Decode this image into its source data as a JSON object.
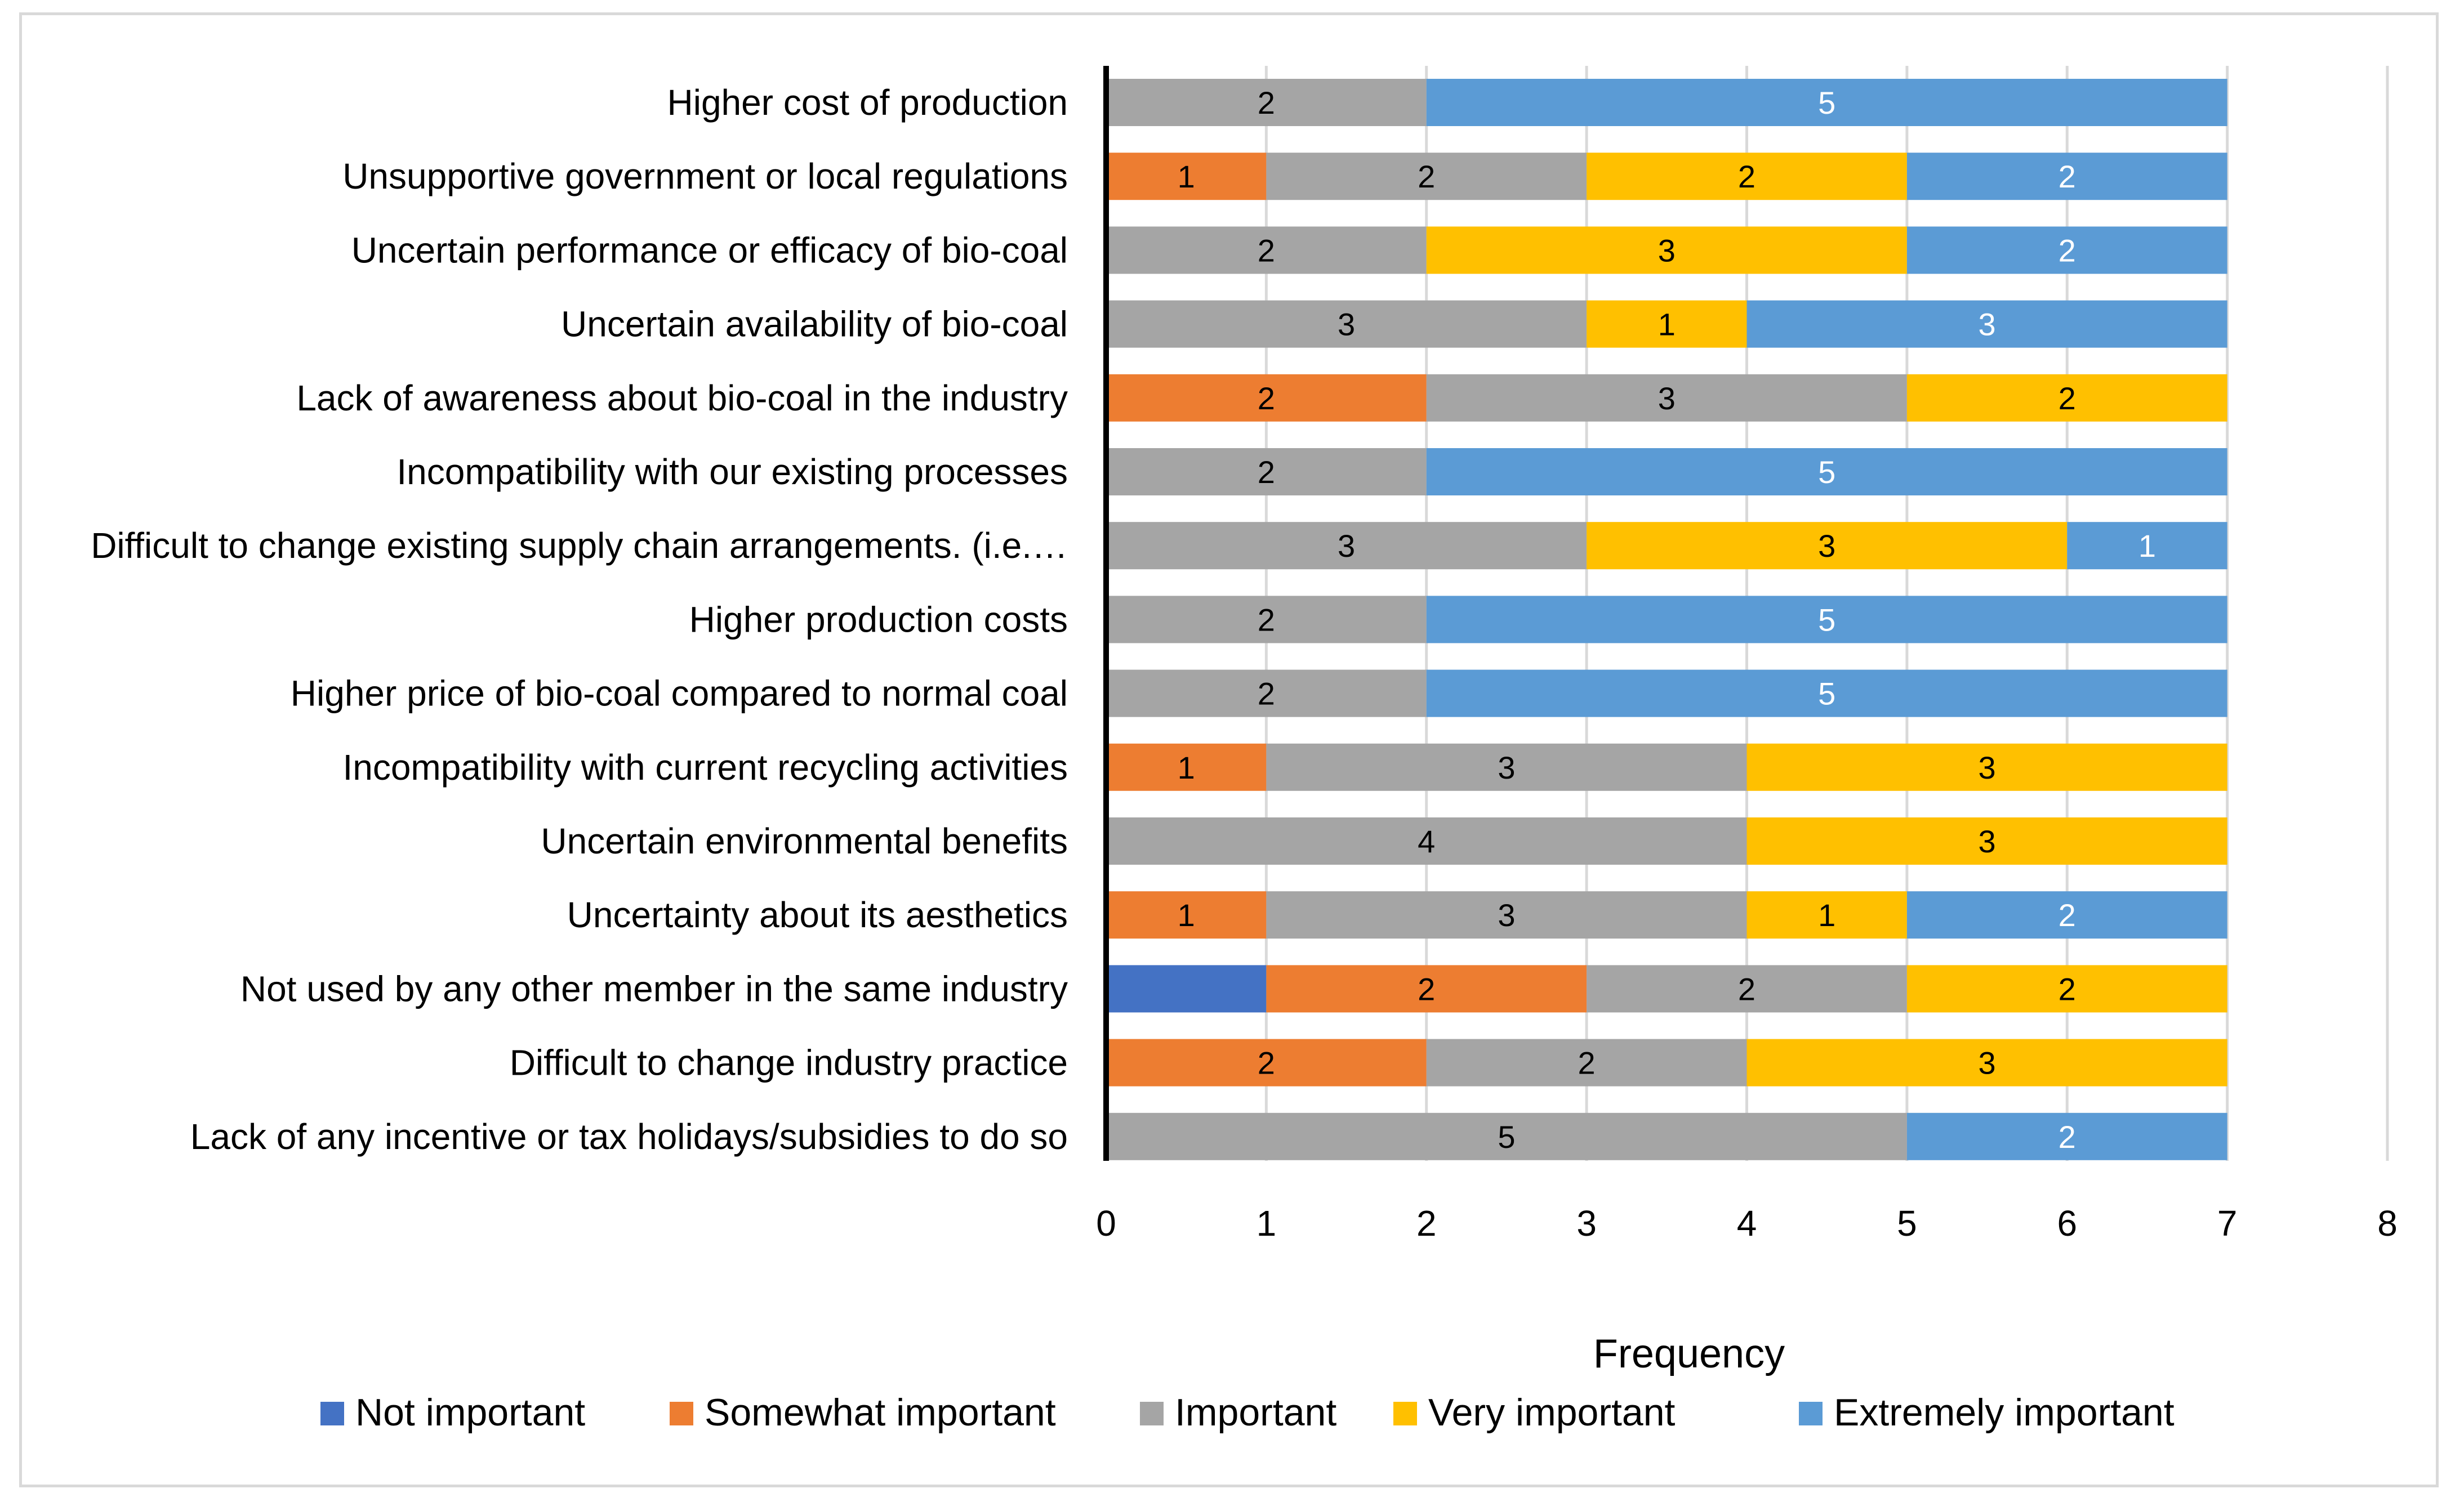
{
  "chart_data": {
    "type": "bar",
    "orientation": "horizontal",
    "stacked": true,
    "title": "",
    "xlabel": "Frequency",
    "ylabel": "",
    "xlim": [
      0,
      8
    ],
    "xticks": [
      0,
      1,
      2,
      3,
      4,
      5,
      6,
      7,
      8
    ],
    "grid": "vertical",
    "legend_position": "bottom",
    "categories": [
      "Higher cost of production",
      "Unsupportive government or local regulations",
      "Uncertain performance or efficacy of bio-coal",
      "Uncertain availability of bio-coal",
      "Lack of awareness about bio-coal in the industry",
      "Incompatibility with our existing processes",
      "Difficult to change existing supply chain arrangements. (i.e.…",
      "Higher production costs",
      "Higher price of bio-coal compared to normal coal",
      "Incompatibility with current recycling activities",
      "Uncertain environmental benefits",
      "Uncertainty about its aesthetics",
      "Not used by any other member in the same industry",
      "Difficult to change industry practice",
      "Lack of any incentive or tax holidays/subsidies to do so"
    ],
    "series": [
      {
        "name": "Not important",
        "color": "#4472c4",
        "label_color": "#ffffff",
        "values": [
          0,
          0,
          0,
          0,
          0,
          0,
          0,
          0,
          0,
          0,
          0,
          0,
          1,
          0,
          0
        ]
      },
      {
        "name": "Somewhat important",
        "color": "#ed7d31",
        "label_color": "#000000",
        "values": [
          0,
          1,
          0,
          0,
          2,
          0,
          0,
          0,
          0,
          1,
          0,
          1,
          2,
          2,
          0
        ]
      },
      {
        "name": "Important",
        "color": "#a5a5a5",
        "label_color": "#000000",
        "values": [
          2,
          2,
          2,
          3,
          3,
          2,
          3,
          2,
          2,
          3,
          4,
          3,
          2,
          2,
          5
        ]
      },
      {
        "name": "Very important",
        "color": "#ffc000",
        "label_color": "#000000",
        "values": [
          0,
          2,
          3,
          1,
          2,
          0,
          3,
          0,
          0,
          3,
          3,
          1,
          2,
          3,
          0
        ]
      },
      {
        "name": "Extremely important",
        "color": "#5b9bd5",
        "label_color": "#ffffff",
        "values": [
          5,
          2,
          2,
          3,
          0,
          5,
          1,
          5,
          5,
          0,
          0,
          2,
          0,
          0,
          2
        ]
      }
    ]
  }
}
